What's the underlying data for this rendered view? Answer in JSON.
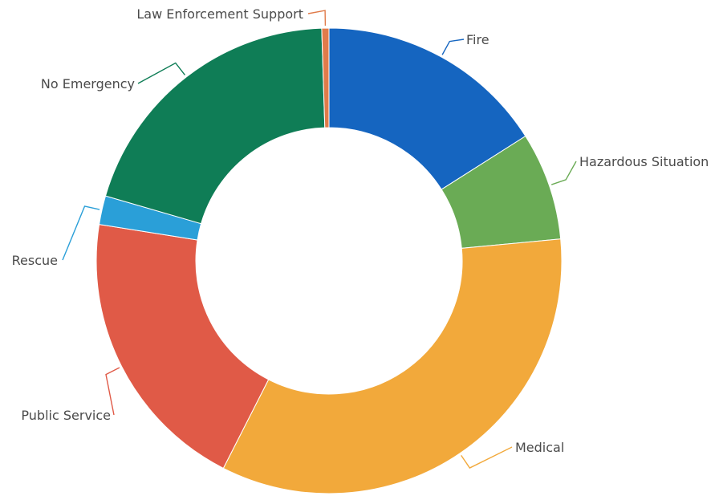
{
  "chart_data": {
    "type": "pie",
    "subtype": "donut",
    "title": "",
    "legend": "none",
    "slices": [
      {
        "label": "Fire",
        "value": 16.0,
        "color": "#1565c0"
      },
      {
        "label": "Hazardous Situation",
        "value": 7.5,
        "color": "#6aab55"
      },
      {
        "label": "Medical",
        "value": 34.0,
        "color": "#f2a93b"
      },
      {
        "label": "Public Service",
        "value": 20.0,
        "color": "#e05a47"
      },
      {
        "label": "Rescue",
        "value": 2.0,
        "color": "#2a9fd8"
      },
      {
        "label": "No Emergency",
        "value": 20.0,
        "color": "#0f7d56"
      },
      {
        "label": "Law Enforcement Support",
        "value": 0.5,
        "color": "#e07b4a"
      }
    ]
  }
}
